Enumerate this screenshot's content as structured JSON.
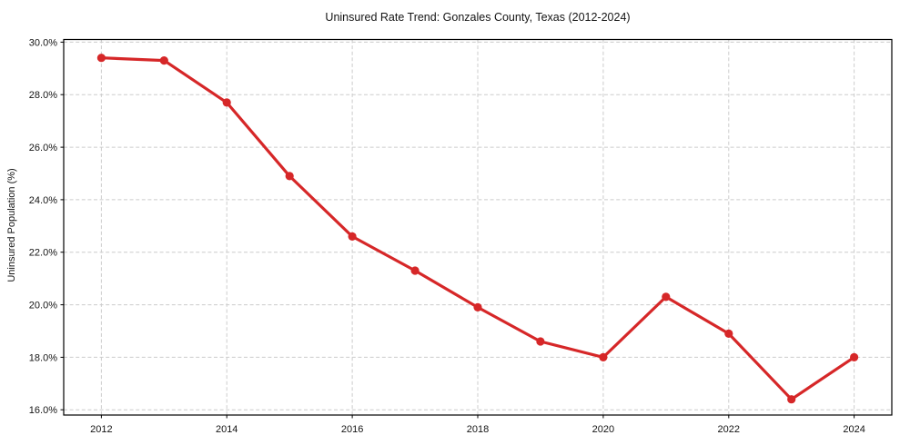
{
  "chart_data": {
    "type": "line",
    "title": "Uninsured Rate Trend: Gonzales County, Texas (2012-2024)",
    "ylabel": "Uninsured Population (%)",
    "x": [
      2012,
      2013,
      2014,
      2015,
      2016,
      2017,
      2018,
      2019,
      2020,
      2021,
      2022,
      2023,
      2024
    ],
    "values": [
      29.4,
      29.3,
      27.7,
      24.9,
      22.6,
      21.3,
      19.9,
      18.6,
      18.0,
      20.3,
      18.9,
      16.4,
      18.0
    ],
    "xticks": [
      2012,
      2014,
      2016,
      2018,
      2020,
      2022,
      2024
    ],
    "xtick_labels": [
      "2012",
      "2014",
      "2016",
      "2018",
      "2020",
      "2022",
      "2024"
    ],
    "yticks": [
      16,
      18,
      20,
      22,
      24,
      26,
      28,
      30
    ],
    "ytick_labels": [
      "16.0%",
      "18.0%",
      "20.0%",
      "22.0%",
      "24.0%",
      "26.0%",
      "28.0%",
      "30.0%"
    ],
    "xlim": [
      2011.4,
      2024.6
    ],
    "ylim": [
      15.8,
      30.1
    ],
    "grid": true,
    "legend": false,
    "line_color": "#d62728",
    "marker": "o",
    "grid_color": "#cccccc",
    "axis_color": "#000000",
    "background": "#ffffff"
  }
}
